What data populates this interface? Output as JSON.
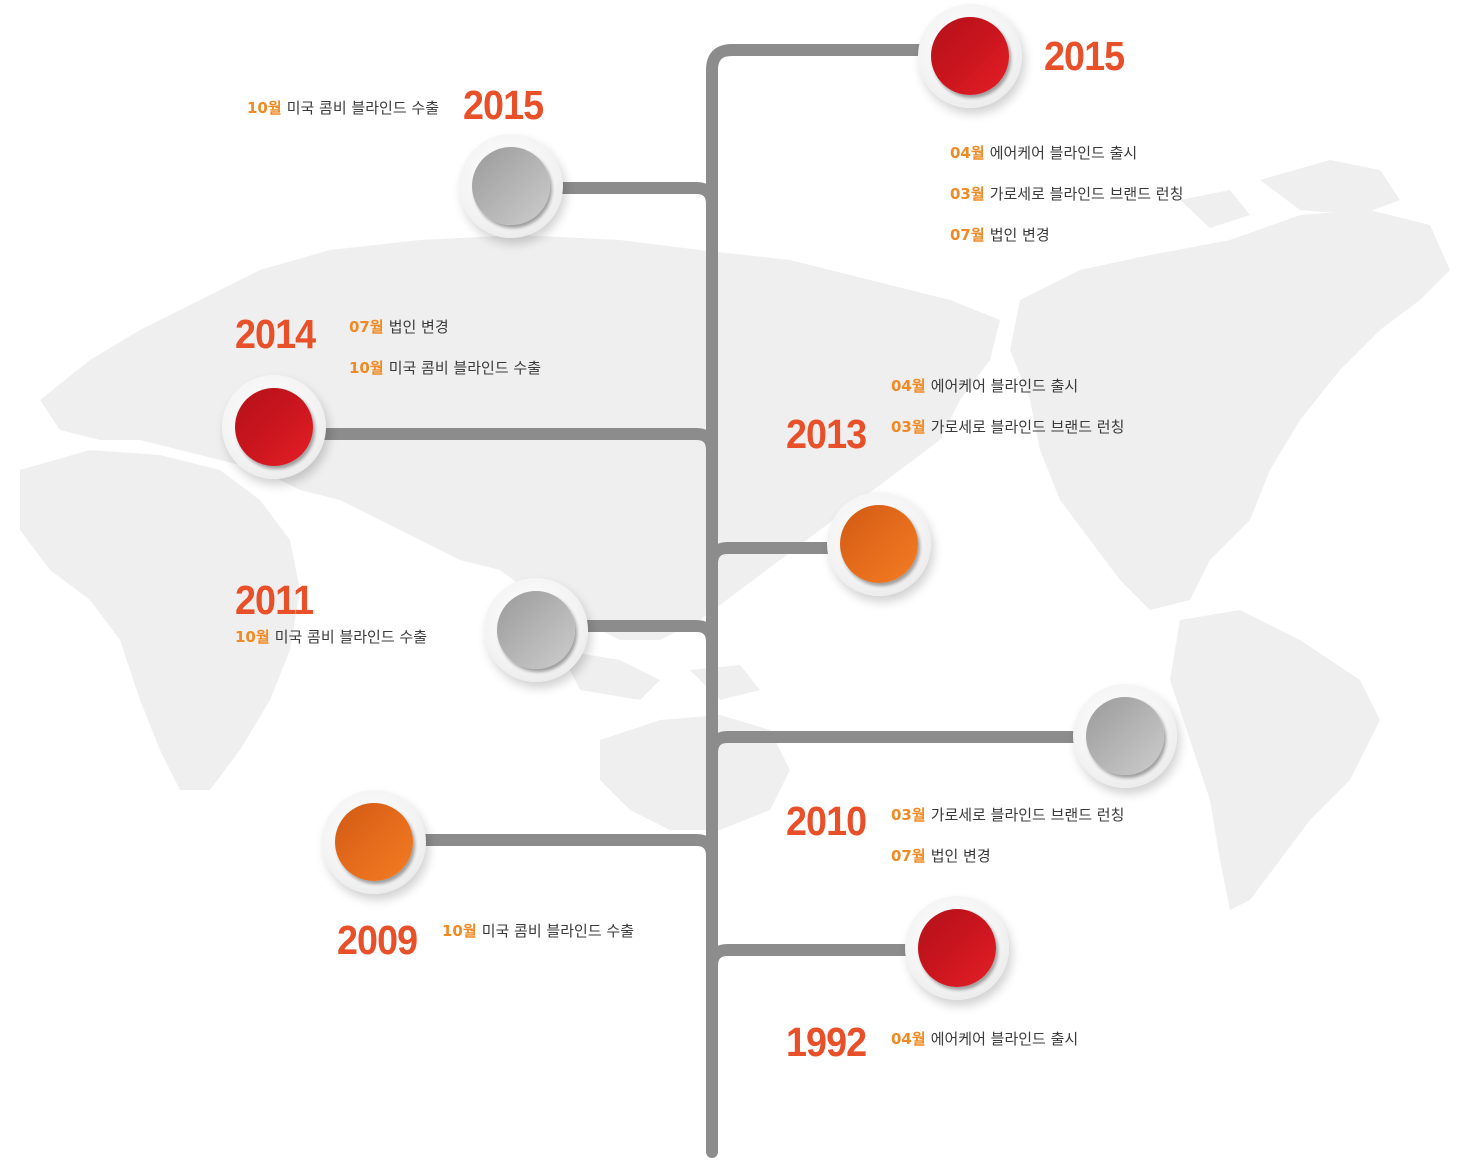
{
  "colors": {
    "year": "#e8502a",
    "month": "#f08a24",
    "text": "#3a3a3a",
    "trunk": "#8c8c8d",
    "map": "#efefef"
  },
  "milestones": [
    {
      "id": "a",
      "year": "2015",
      "node_color": "red",
      "entries": [
        {
          "month": "04월",
          "text": "에어케어 블라인드 출시"
        },
        {
          "month": "03월",
          "text": "가로세로 블라인드 브랜드 런칭"
        },
        {
          "month": "07월",
          "text": "법인 변경"
        }
      ]
    },
    {
      "id": "b",
      "year": "2015",
      "node_color": "gray",
      "entries": [
        {
          "month": "10월",
          "text": "미국 콤비 블라인드 수출"
        }
      ]
    },
    {
      "id": "c",
      "year": "2014",
      "node_color": "red",
      "entries": [
        {
          "month": "07월",
          "text": "법인 변경"
        },
        {
          "month": "10월",
          "text": "미국 콤비 블라인드 수출"
        }
      ]
    },
    {
      "id": "d",
      "year": "2013",
      "node_color": "orange",
      "entries": [
        {
          "month": "04월",
          "text": "에어케어 블라인드 출시"
        },
        {
          "month": "03월",
          "text": "가로세로 블라인드 브랜드 런칭"
        }
      ]
    },
    {
      "id": "e",
      "year": "2011",
      "node_color": "gray",
      "entries": [
        {
          "month": "10월",
          "text": "미국 콤비 블라인드 수출"
        }
      ]
    },
    {
      "id": "f",
      "year": "2010",
      "node_color": "gray",
      "entries": [
        {
          "month": "03월",
          "text": "가로세로 블라인드 브랜드 런칭"
        },
        {
          "month": "07월",
          "text": "법인 변경"
        }
      ]
    },
    {
      "id": "g",
      "year": "2009",
      "node_color": "orange",
      "entries": [
        {
          "month": "10월",
          "text": "미국 콤비 블라인드 수출"
        }
      ]
    },
    {
      "id": "h",
      "year": "1992",
      "node_color": "red",
      "entries": [
        {
          "month": "04월",
          "text": "에어케어 블라인드 출시"
        }
      ]
    }
  ]
}
